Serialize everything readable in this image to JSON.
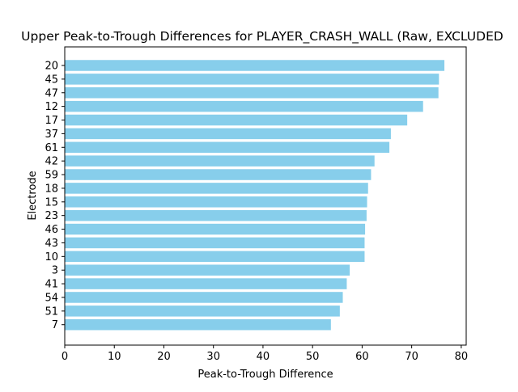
{
  "chart_data": {
    "type": "bar",
    "orientation": "horizontal",
    "title": "Upper Peak-to-Trough Differences for PLAYER_CRASH_WALL (Raw, EXCLUDED",
    "xlabel": "Peak-to-Trough Difference",
    "ylabel": "Electrode",
    "xlim": [
      0,
      81
    ],
    "xticks": [
      "0",
      "10",
      "20",
      "30",
      "40",
      "50",
      "60",
      "70",
      "80"
    ],
    "grid": false,
    "legend": "none",
    "bar_color": "#87ceeb",
    "categories": [
      "20",
      "45",
      "47",
      "12",
      "17",
      "37",
      "61",
      "42",
      "59",
      "18",
      "15",
      "23",
      "46",
      "43",
      "10",
      "3",
      "41",
      "54",
      "51",
      "7"
    ],
    "values": [
      76.6,
      75.5,
      75.4,
      72.3,
      69.1,
      65.8,
      65.5,
      62.5,
      61.8,
      61.2,
      61.0,
      60.9,
      60.6,
      60.5,
      60.5,
      57.5,
      56.9,
      56.1,
      55.5,
      53.7
    ]
  }
}
